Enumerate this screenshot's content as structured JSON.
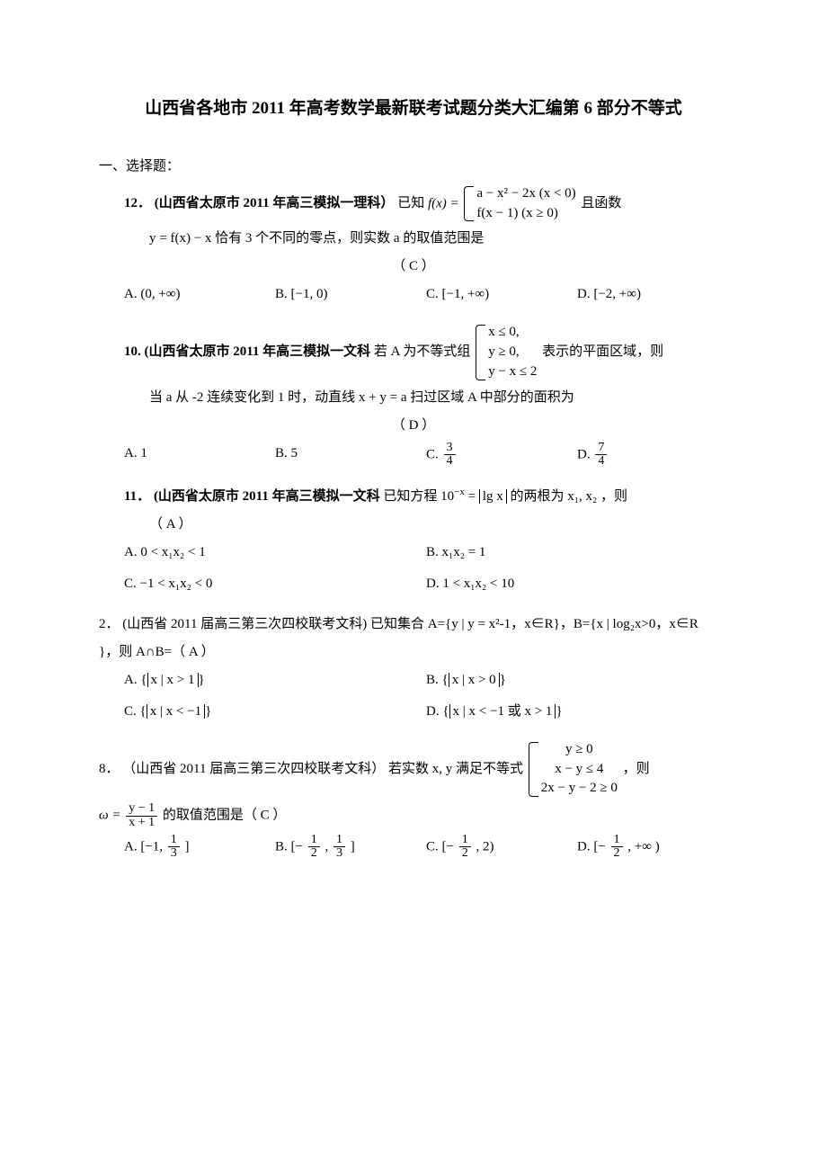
{
  "title": "山西省各地市 2011 年高考数学最新联考试题分类大汇编第 6 部分不等式",
  "section1": "一、选择题：",
  "q12": {
    "num": "12．",
    "src": "(山西省太原市 2011 年高三模拟一理科）",
    "known": "已知",
    "fx": "f(x) =",
    "case1": "a − x² − 2x (x < 0)",
    "case2": "f(x − 1) (x ≥ 0)",
    "and": "且函数",
    "line2": "y = f(x) − x 恰有 3 个不同的零点，则实数 a 的取值范围是",
    "ans": "（  C  ）",
    "optA": "A.  (0, +∞)",
    "optB": "B.  [−1, 0)",
    "optC": "C.  [−1, +∞)",
    "optD": "D.  [−2, +∞)"
  },
  "q10": {
    "num": "10.",
    "src": "(山西省太原市 2011 年高三模拟一文科",
    "pre": "若 A 为不等式组",
    "c1": "x ≤ 0,",
    "c2": "y ≥ 0,",
    "c3": "y − x ≤ 2",
    "post": "表示的平面区域，则",
    "line2": "当 a 从 -2 连续变化到 1 时，动直线 x + y = a 扫过区域 A 中部分的面积为",
    "ans": "（  D  ）",
    "optA": "A.  1",
    "optB": "B.  5",
    "cLabel": "C.  ",
    "cNum": "3",
    "cDen": "4",
    "dLabel": "D.  ",
    "dNum": "7",
    "dDen": "4"
  },
  "q11": {
    "num": "11．",
    "src": "(山西省太原市 2011 年高三模拟一文科",
    "pre": "已知方程 10",
    "expo1": "−x",
    "eq": " = ",
    "lg": "lg x",
    "post": " 的两根为 x₁, x₂ ，则",
    "ans": "（  A  ）",
    "optA": "A.  0 < x₁x₂ < 1",
    "optB": "B.  x₁x₂ = 1",
    "optC": "C.  −1 < x₁x₂ < 0",
    "optD": "D.  1 < x₁x₂ < 10"
  },
  "q2": {
    "num": "2．",
    "src": "(山西省 2011 届高三第三次四校联考文科)",
    "body1": "已知集合 A={y | y = x²-1，x∈R}，B={x | log₂x>0，x∈R",
    "body2": "}，则 A∩B=（   A   ）",
    "optA_pre": "A.  ",
    "optA_set": "x | x > 1",
    "optB_pre": "B.  ",
    "optB_set": "x | x > 0",
    "optC_pre": "C.  ",
    "optC_set": "x | x < −1",
    "optD_pre": "D.  ",
    "optD_set": "x | x < −1 或 x > 1"
  },
  "q8": {
    "num": "8．",
    "src": "（山西省 2011 届高三第三次四校联考文科）",
    "pre": "若实数 x, y 满足不等式",
    "c1": "y ≥ 0",
    "c2": "x − y ≤ 4",
    "c3": "2x − y − 2 ≥ 0",
    "post": "，则",
    "omega": "ω =",
    "fracNum": "y − 1",
    "fracDen": "x + 1",
    "tail": " 的取值范围是（  C  ）",
    "aLabel": "A. [−1, ",
    "aNum": "1",
    "aDen": "3",
    "aEnd": " ]",
    "bLabel": "B. [−",
    "bNum1": "1",
    "bDen1": "2",
    "bMid": ", ",
    "bNum2": "1",
    "bDen2": "3",
    "bEnd": " ]",
    "cLabel": "C. [−",
    "cNum": "1",
    "cDen": "2",
    "cEnd": ", 2)",
    "dLabel": "D. [−",
    "dNum": "1",
    "dDen": "2",
    "dEnd": ",  +∞ )"
  }
}
